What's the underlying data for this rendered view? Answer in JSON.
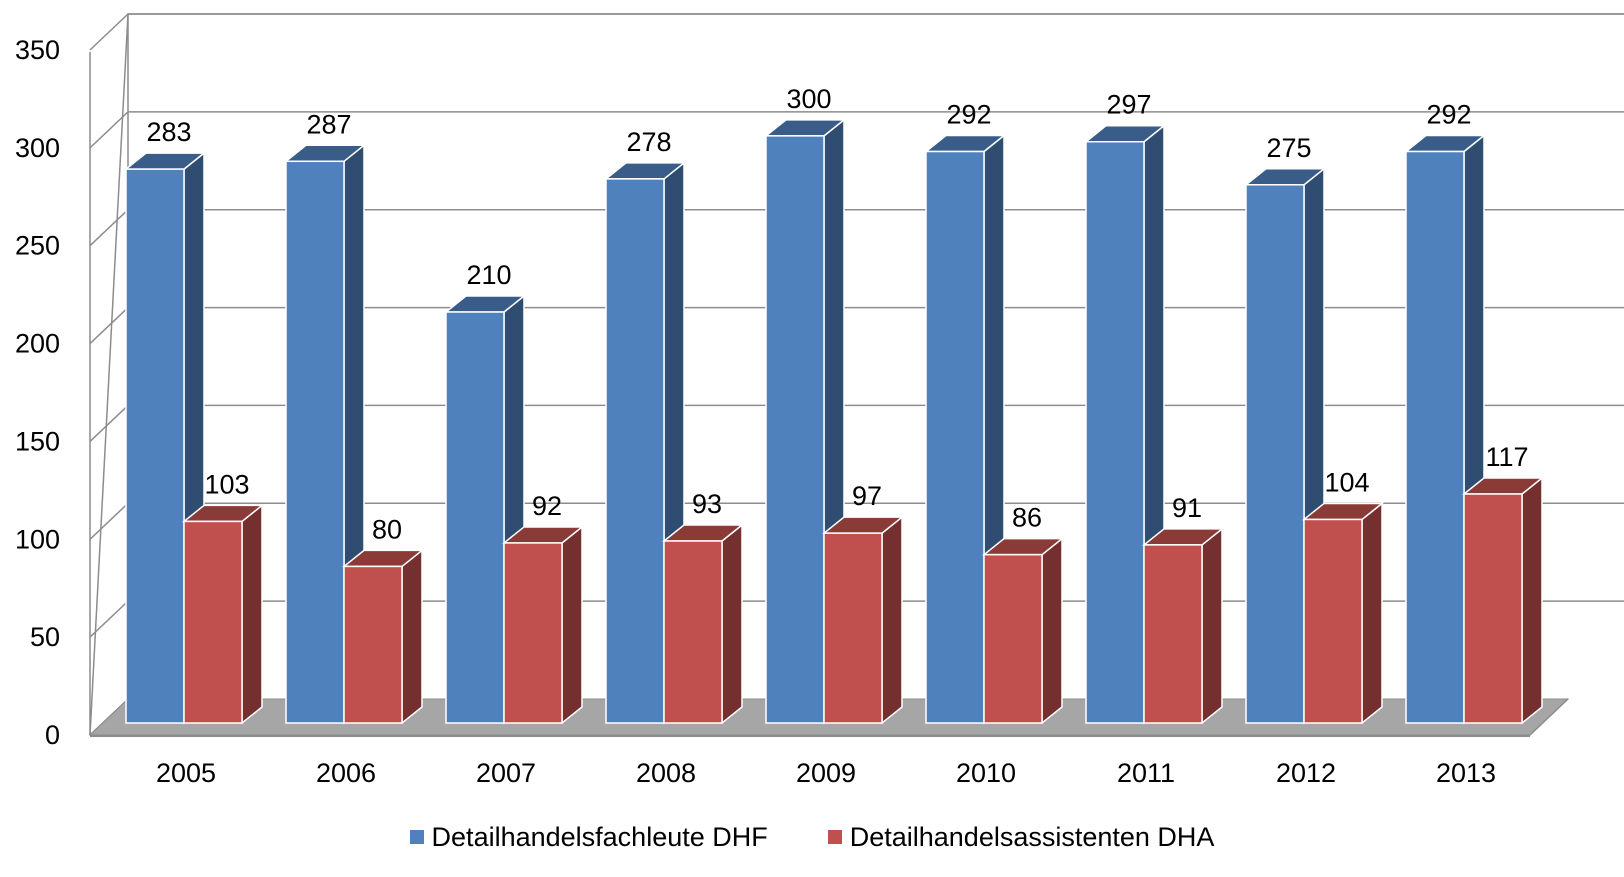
{
  "chart_data": {
    "type": "bar",
    "categories": [
      "2005",
      "2006",
      "2007",
      "2008",
      "2009",
      "2010",
      "2011",
      "2012",
      "2013"
    ],
    "series": [
      {
        "name": "Detailhandelsfachleute DHF",
        "values": [
          283,
          287,
          210,
          278,
          300,
          292,
          297,
          275,
          292
        ],
        "color": "#4f81bd"
      },
      {
        "name": "Detailhandelsassistenten DHA",
        "values": [
          103,
          80,
          92,
          93,
          97,
          86,
          91,
          104,
          117
        ],
        "color": "#c0504d"
      }
    ],
    "y_ticks": [
      "0",
      "50",
      "100",
      "150",
      "200",
      "250",
      "300",
      "350"
    ],
    "ylim": [
      0,
      350
    ],
    "grid": true,
    "legend_position": "bottom",
    "style": "3d-clustered-column",
    "data_labels": true
  }
}
